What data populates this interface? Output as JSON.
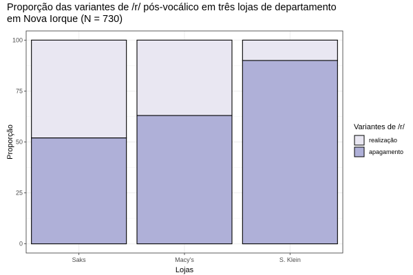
{
  "chart_data": {
    "type": "bar",
    "stacked": true,
    "title": "Proporção das variantes de /r/ pós-vocálico em três lojas de departamento\nem Nova Iorque (N = 730)",
    "xlabel": "Lojas",
    "ylabel": "Proporção",
    "categories": [
      "Saks",
      "Macy's",
      "S. Klein"
    ],
    "ylim": [
      0,
      100
    ],
    "yticks": [
      0,
      25,
      50,
      75,
      100
    ],
    "series": [
      {
        "name": "apagamento",
        "values": [
          52,
          63,
          90
        ],
        "color": "#afb0d8"
      },
      {
        "name": "realização",
        "values": [
          48,
          37,
          10
        ],
        "color": "#e9e7f2"
      }
    ],
    "legend": {
      "title": "Variantes de /r/",
      "position": "right",
      "order": [
        "realização",
        "apagamento"
      ]
    },
    "grid": true,
    "bar_outline_color": "#000000"
  }
}
